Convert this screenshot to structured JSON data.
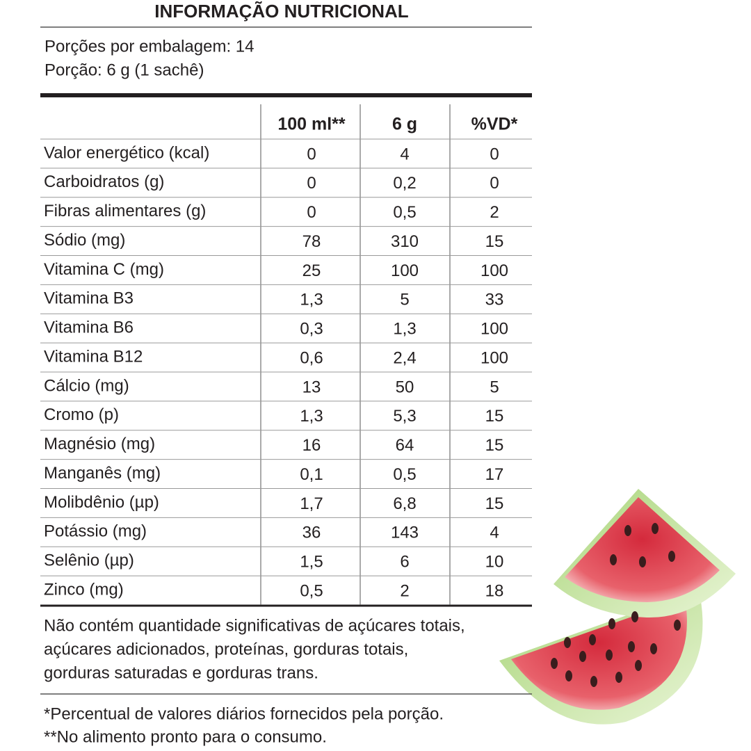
{
  "header": {
    "title": "INFORMAÇÃO NUTRICIONAL"
  },
  "serving": [
    "Porções por embalagem: 14",
    "Porção: 6 g (1 sachê)"
  ],
  "table": {
    "columns": [
      "100 ml**",
      "6 g",
      "%VD*"
    ],
    "rows": [
      [
        "Valor energético (kcal)",
        "0",
        "4",
        "0"
      ],
      [
        "Carboidratos (g)",
        "0",
        "0,2",
        "0"
      ],
      [
        "Fibras alimentares (g)",
        "0",
        "0,5",
        "2"
      ],
      [
        "Sódio (mg)",
        "78",
        "310",
        "15"
      ],
      [
        "Vitamina C (mg)",
        "25",
        "100",
        "100"
      ],
      [
        "Vitamina B3",
        "1,3",
        "5",
        "33"
      ],
      [
        "Vitamina B6",
        "0,3",
        "1,3",
        "100"
      ],
      [
        "Vitamina B12",
        "0,6",
        "2,4",
        "100"
      ],
      [
        "Cálcio (mg)",
        "13",
        "50",
        "5"
      ],
      [
        "Cromo (p)",
        "1,3",
        "5,3",
        "15"
      ],
      [
        "Magnésio (mg)",
        "16",
        "64",
        "15"
      ],
      [
        "Manganês (mg)",
        "0,1",
        "0,5",
        "17"
      ],
      [
        "Molibdênio (µp)",
        "1,7",
        "6,8",
        "15"
      ],
      [
        "Potássio (mg)",
        "36",
        "143",
        "4"
      ],
      [
        "Selênio (µp)",
        "1,5",
        "6",
        "10"
      ],
      [
        "Zinco (mg)",
        "0,5",
        "2",
        "18"
      ]
    ]
  },
  "note": [
    "Não contém quantidade significativas de açúcares totais,",
    "açúcares adicionados, proteínas, gorduras totais,",
    "gorduras saturadas e gorduras trans."
  ],
  "footnotes": [
    "*Percentual de valores diários fornecidos pela porção.",
    "**No alimento pronto para o consumo."
  ]
}
